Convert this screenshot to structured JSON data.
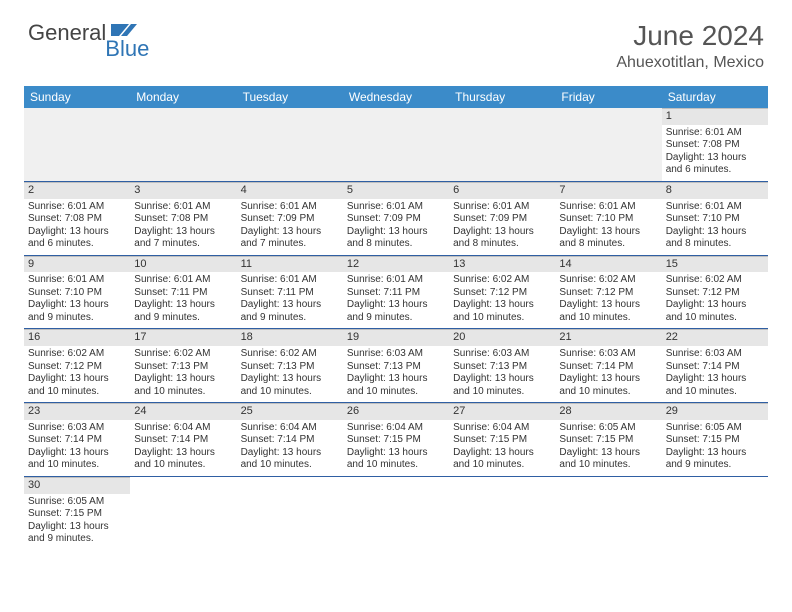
{
  "brand": {
    "part1": "General",
    "part2": "Blue",
    "flag_color": "#2f75b5"
  },
  "title": "June 2024",
  "location": "Ahuexotitlan, Mexico",
  "colors": {
    "header_bg": "#3b8bc9",
    "header_text": "#ffffff",
    "daynum_bg": "#e6e6e6",
    "row_border": "#2f5fa3",
    "text": "#333333"
  },
  "weekdays": [
    "Sunday",
    "Monday",
    "Tuesday",
    "Wednesday",
    "Thursday",
    "Friday",
    "Saturday"
  ],
  "weeks": [
    [
      null,
      null,
      null,
      null,
      null,
      null,
      {
        "n": "1",
        "sr": "Sunrise: 6:01 AM",
        "ss": "Sunset: 7:08 PM",
        "d1": "Daylight: 13 hours",
        "d2": "and 6 minutes."
      }
    ],
    [
      {
        "n": "2",
        "sr": "Sunrise: 6:01 AM",
        "ss": "Sunset: 7:08 PM",
        "d1": "Daylight: 13 hours",
        "d2": "and 6 minutes."
      },
      {
        "n": "3",
        "sr": "Sunrise: 6:01 AM",
        "ss": "Sunset: 7:08 PM",
        "d1": "Daylight: 13 hours",
        "d2": "and 7 minutes."
      },
      {
        "n": "4",
        "sr": "Sunrise: 6:01 AM",
        "ss": "Sunset: 7:09 PM",
        "d1": "Daylight: 13 hours",
        "d2": "and 7 minutes."
      },
      {
        "n": "5",
        "sr": "Sunrise: 6:01 AM",
        "ss": "Sunset: 7:09 PM",
        "d1": "Daylight: 13 hours",
        "d2": "and 8 minutes."
      },
      {
        "n": "6",
        "sr": "Sunrise: 6:01 AM",
        "ss": "Sunset: 7:09 PM",
        "d1": "Daylight: 13 hours",
        "d2": "and 8 minutes."
      },
      {
        "n": "7",
        "sr": "Sunrise: 6:01 AM",
        "ss": "Sunset: 7:10 PM",
        "d1": "Daylight: 13 hours",
        "d2": "and 8 minutes."
      },
      {
        "n": "8",
        "sr": "Sunrise: 6:01 AM",
        "ss": "Sunset: 7:10 PM",
        "d1": "Daylight: 13 hours",
        "d2": "and 8 minutes."
      }
    ],
    [
      {
        "n": "9",
        "sr": "Sunrise: 6:01 AM",
        "ss": "Sunset: 7:10 PM",
        "d1": "Daylight: 13 hours",
        "d2": "and 9 minutes."
      },
      {
        "n": "10",
        "sr": "Sunrise: 6:01 AM",
        "ss": "Sunset: 7:11 PM",
        "d1": "Daylight: 13 hours",
        "d2": "and 9 minutes."
      },
      {
        "n": "11",
        "sr": "Sunrise: 6:01 AM",
        "ss": "Sunset: 7:11 PM",
        "d1": "Daylight: 13 hours",
        "d2": "and 9 minutes."
      },
      {
        "n": "12",
        "sr": "Sunrise: 6:01 AM",
        "ss": "Sunset: 7:11 PM",
        "d1": "Daylight: 13 hours",
        "d2": "and 9 minutes."
      },
      {
        "n": "13",
        "sr": "Sunrise: 6:02 AM",
        "ss": "Sunset: 7:12 PM",
        "d1": "Daylight: 13 hours",
        "d2": "and 10 minutes."
      },
      {
        "n": "14",
        "sr": "Sunrise: 6:02 AM",
        "ss": "Sunset: 7:12 PM",
        "d1": "Daylight: 13 hours",
        "d2": "and 10 minutes."
      },
      {
        "n": "15",
        "sr": "Sunrise: 6:02 AM",
        "ss": "Sunset: 7:12 PM",
        "d1": "Daylight: 13 hours",
        "d2": "and 10 minutes."
      }
    ],
    [
      {
        "n": "16",
        "sr": "Sunrise: 6:02 AM",
        "ss": "Sunset: 7:12 PM",
        "d1": "Daylight: 13 hours",
        "d2": "and 10 minutes."
      },
      {
        "n": "17",
        "sr": "Sunrise: 6:02 AM",
        "ss": "Sunset: 7:13 PM",
        "d1": "Daylight: 13 hours",
        "d2": "and 10 minutes."
      },
      {
        "n": "18",
        "sr": "Sunrise: 6:02 AM",
        "ss": "Sunset: 7:13 PM",
        "d1": "Daylight: 13 hours",
        "d2": "and 10 minutes."
      },
      {
        "n": "19",
        "sr": "Sunrise: 6:03 AM",
        "ss": "Sunset: 7:13 PM",
        "d1": "Daylight: 13 hours",
        "d2": "and 10 minutes."
      },
      {
        "n": "20",
        "sr": "Sunrise: 6:03 AM",
        "ss": "Sunset: 7:13 PM",
        "d1": "Daylight: 13 hours",
        "d2": "and 10 minutes."
      },
      {
        "n": "21",
        "sr": "Sunrise: 6:03 AM",
        "ss": "Sunset: 7:14 PM",
        "d1": "Daylight: 13 hours",
        "d2": "and 10 minutes."
      },
      {
        "n": "22",
        "sr": "Sunrise: 6:03 AM",
        "ss": "Sunset: 7:14 PM",
        "d1": "Daylight: 13 hours",
        "d2": "and 10 minutes."
      }
    ],
    [
      {
        "n": "23",
        "sr": "Sunrise: 6:03 AM",
        "ss": "Sunset: 7:14 PM",
        "d1": "Daylight: 13 hours",
        "d2": "and 10 minutes."
      },
      {
        "n": "24",
        "sr": "Sunrise: 6:04 AM",
        "ss": "Sunset: 7:14 PM",
        "d1": "Daylight: 13 hours",
        "d2": "and 10 minutes."
      },
      {
        "n": "25",
        "sr": "Sunrise: 6:04 AM",
        "ss": "Sunset: 7:14 PM",
        "d1": "Daylight: 13 hours",
        "d2": "and 10 minutes."
      },
      {
        "n": "26",
        "sr": "Sunrise: 6:04 AM",
        "ss": "Sunset: 7:15 PM",
        "d1": "Daylight: 13 hours",
        "d2": "and 10 minutes."
      },
      {
        "n": "27",
        "sr": "Sunrise: 6:04 AM",
        "ss": "Sunset: 7:15 PM",
        "d1": "Daylight: 13 hours",
        "d2": "and 10 minutes."
      },
      {
        "n": "28",
        "sr": "Sunrise: 6:05 AM",
        "ss": "Sunset: 7:15 PM",
        "d1": "Daylight: 13 hours",
        "d2": "and 10 minutes."
      },
      {
        "n": "29",
        "sr": "Sunrise: 6:05 AM",
        "ss": "Sunset: 7:15 PM",
        "d1": "Daylight: 13 hours",
        "d2": "and 9 minutes."
      }
    ],
    [
      {
        "n": "30",
        "sr": "Sunrise: 6:05 AM",
        "ss": "Sunset: 7:15 PM",
        "d1": "Daylight: 13 hours",
        "d2": "and 9 minutes."
      },
      null,
      null,
      null,
      null,
      null,
      null
    ]
  ]
}
